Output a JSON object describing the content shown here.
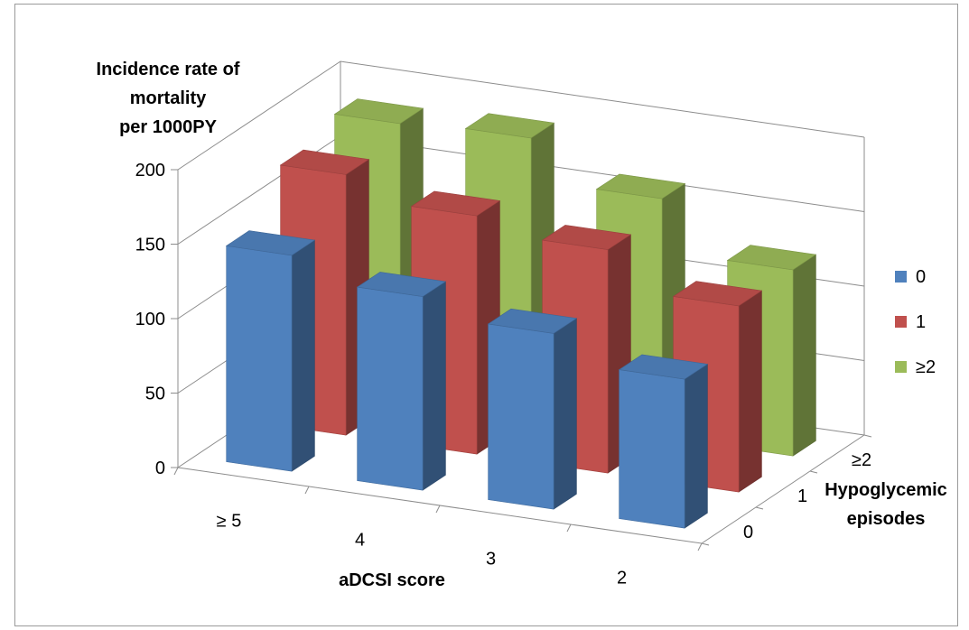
{
  "chart_data": {
    "type": "bar",
    "subtype": "3d-column",
    "title_lines": [
      "Incidence rate of",
      "mortality",
      "per 1000PY"
    ],
    "xlabel": "aDCSI score",
    "zlabel_lines": [
      "Hypoglycemic",
      "episodes"
    ],
    "categories": [
      "≥ 5",
      "4",
      "3",
      "2"
    ],
    "series": [
      {
        "name": "0",
        "color": "#4F81BD",
        "values": [
          145,
          130,
          118,
          100
        ]
      },
      {
        "name": "1",
        "color": "#C0504D",
        "values": [
          175,
          160,
          150,
          125
        ]
      },
      {
        "name": "≥2",
        "color": "#9BBB59",
        "values": [
          185,
          188,
          160,
          125
        ]
      }
    ],
    "depth_labels": [
      "0",
      "1",
      "≥2"
    ],
    "yticks": [
      "0",
      "50",
      "100",
      "150",
      "200"
    ],
    "ylim": [
      0,
      200
    ],
    "grid": true,
    "legend_position": "right"
  }
}
